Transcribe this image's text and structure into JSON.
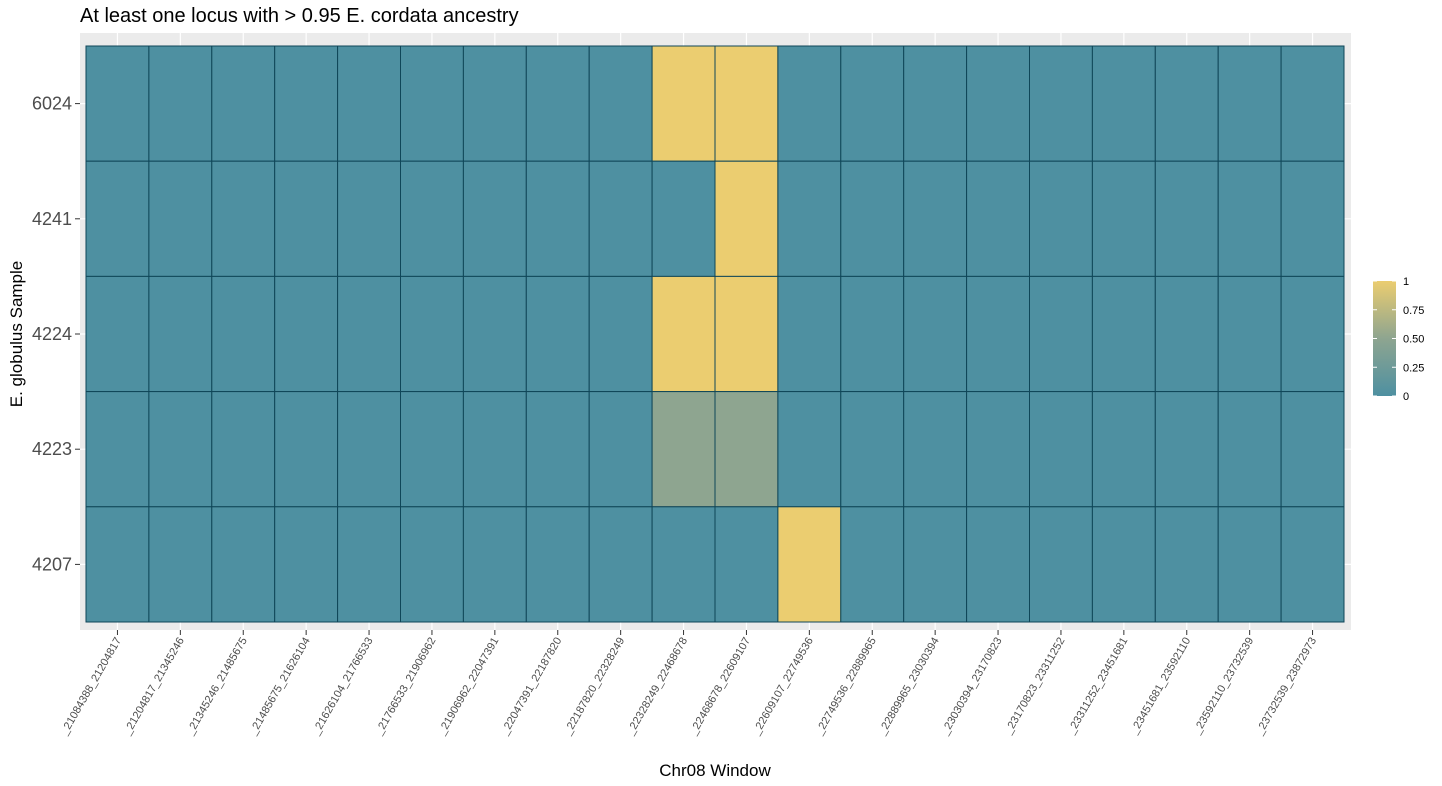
{
  "chart_data": {
    "type": "heatmap",
    "title": "At least one locus with > 0.95 E. cordata ancestry",
    "xlabel": "Chr08 Window",
    "ylabel": "E. globulus Sample",
    "x_categories": [
      "_21084388_21204817",
      "_21204817_21345246",
      "_21345246_21485675",
      "_21485675_21626104",
      "_21626104_21766533",
      "_21766533_21906962",
      "_21906962_22047391",
      "_22047391_22187820",
      "_22187820_22328249",
      "_22328249_22468678",
      "_22468678_22609107",
      "_22609107_22749536",
      "_22749536_22889965",
      "_22889965_23030394",
      "_23030394_23170823",
      "_23170823_23311252",
      "_23311252_23451681",
      "_23451681_23592110",
      "_23592110_23732539",
      "_23732539_23872973"
    ],
    "y_categories": [
      "6024",
      "4241",
      "4224",
      "4223",
      "4207"
    ],
    "values": [
      [
        0,
        0,
        0,
        0,
        0,
        0,
        0,
        0,
        0,
        1,
        1,
        0,
        0,
        0,
        0,
        0,
        0,
        0,
        0,
        0
      ],
      [
        0,
        0,
        0,
        0,
        0,
        0,
        0,
        0,
        0,
        0,
        1,
        0,
        0,
        0,
        0,
        0,
        0,
        0,
        0,
        0
      ],
      [
        0,
        0,
        0,
        0,
        0,
        0,
        0,
        0,
        0,
        1,
        1,
        0,
        0,
        0,
        0,
        0,
        0,
        0,
        0,
        0
      ],
      [
        0,
        0,
        0,
        0,
        0,
        0,
        0,
        0,
        0,
        0.5,
        0.5,
        0,
        0,
        0,
        0,
        0,
        0,
        0,
        0,
        0
      ],
      [
        0,
        0,
        0,
        0,
        0,
        0,
        0,
        0,
        0,
        0,
        0,
        1,
        0,
        0,
        0,
        0,
        0,
        0,
        0,
        0
      ]
    ],
    "value_range": [
      0,
      1
    ],
    "legend": {
      "ticks": [
        "1",
        "0.75",
        "0.50",
        "0.25",
        "0"
      ],
      "placement": "right"
    },
    "colors": {
      "low": "#4e90a1",
      "mid": "#8ea590",
      "high": "#ebcd70",
      "cell_border": "#0f4658",
      "panel_background": "#ebebeb",
      "grid": "#ffffff"
    },
    "grid": true
  }
}
